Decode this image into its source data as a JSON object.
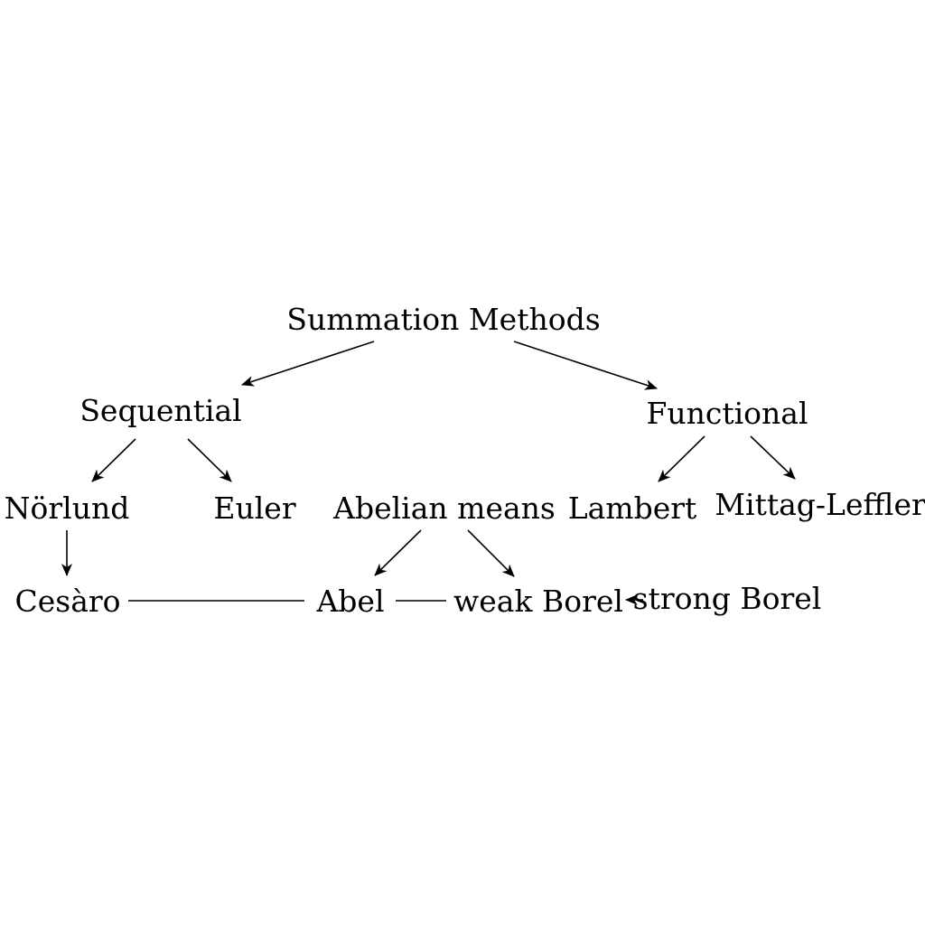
{
  "diagram": {
    "nodes": {
      "root": "Summation Methods",
      "sequential": "Sequential",
      "functional": "Functional",
      "norlund": "Nörlund",
      "euler": "Euler",
      "abelian": "Abelian means",
      "lambert": "Lambert",
      "mittag": "Mittag-Leffler",
      "cesaro": "Cesàro",
      "abel": "Abel",
      "weak_borel": "weak Borel",
      "strong_borel": "strong Borel"
    },
    "edges": [
      {
        "from": "root",
        "to": "sequential",
        "arrow": true
      },
      {
        "from": "root",
        "to": "functional",
        "arrow": true
      },
      {
        "from": "sequential",
        "to": "norlund",
        "arrow": true
      },
      {
        "from": "sequential",
        "to": "euler",
        "arrow": true
      },
      {
        "from": "functional",
        "to": "lambert",
        "arrow": true
      },
      {
        "from": "functional",
        "to": "mittag",
        "arrow": true
      },
      {
        "from": "norlund",
        "to": "cesaro",
        "arrow": true
      },
      {
        "from": "abelian",
        "to": "abel",
        "arrow": true
      },
      {
        "from": "abelian",
        "to": "weak_borel",
        "arrow": true
      },
      {
        "from": "cesaro",
        "to": "abel",
        "arrow": false
      },
      {
        "from": "abel",
        "to": "weak_borel",
        "arrow": false
      },
      {
        "from": "strong_borel",
        "to": "weak_borel",
        "arrow": true
      }
    ]
  }
}
